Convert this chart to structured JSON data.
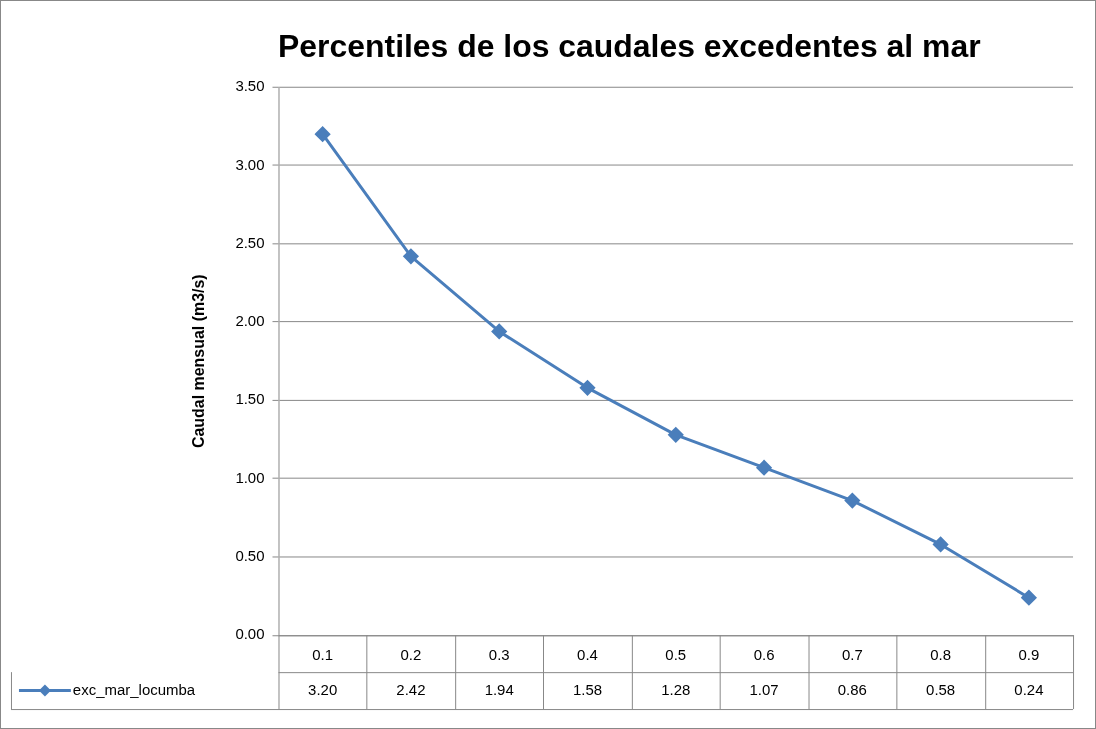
{
  "chart_data": {
    "type": "line",
    "title": "Percentiles de los caudales excedentes al mar",
    "ylabel": "Caudal mensual (m3/s)",
    "categories": [
      "0.1",
      "0.2",
      "0.3",
      "0.4",
      "0.5",
      "0.6",
      "0.7",
      "0.8",
      "0.9"
    ],
    "series": [
      {
        "name": "exc_mar_locumba",
        "color": "#4a7ebb",
        "values": [
          3.2,
          2.42,
          1.94,
          1.58,
          1.28,
          1.07,
          0.86,
          0.58,
          0.24
        ],
        "value_labels": [
          "3.20",
          "2.42",
          "1.94",
          "1.58",
          "1.28",
          "1.07",
          "0.86",
          "0.58",
          "0.24"
        ]
      }
    ],
    "ylim": [
      0,
      3.5
    ],
    "yticks": [
      {
        "value": 0,
        "label": "0.00"
      },
      {
        "value": 0.5,
        "label": "0.50"
      },
      {
        "value": 1,
        "label": "1.00"
      },
      {
        "value": 1.5,
        "label": "1.50"
      },
      {
        "value": 2,
        "label": "2.00"
      },
      {
        "value": 2.5,
        "label": "2.50"
      },
      {
        "value": 3,
        "label": "3.00"
      },
      {
        "value": 3.5,
        "label": "3.50"
      }
    ],
    "grid": "y",
    "legend": "bottom",
    "marker": "diamond",
    "line_style": "solid"
  }
}
